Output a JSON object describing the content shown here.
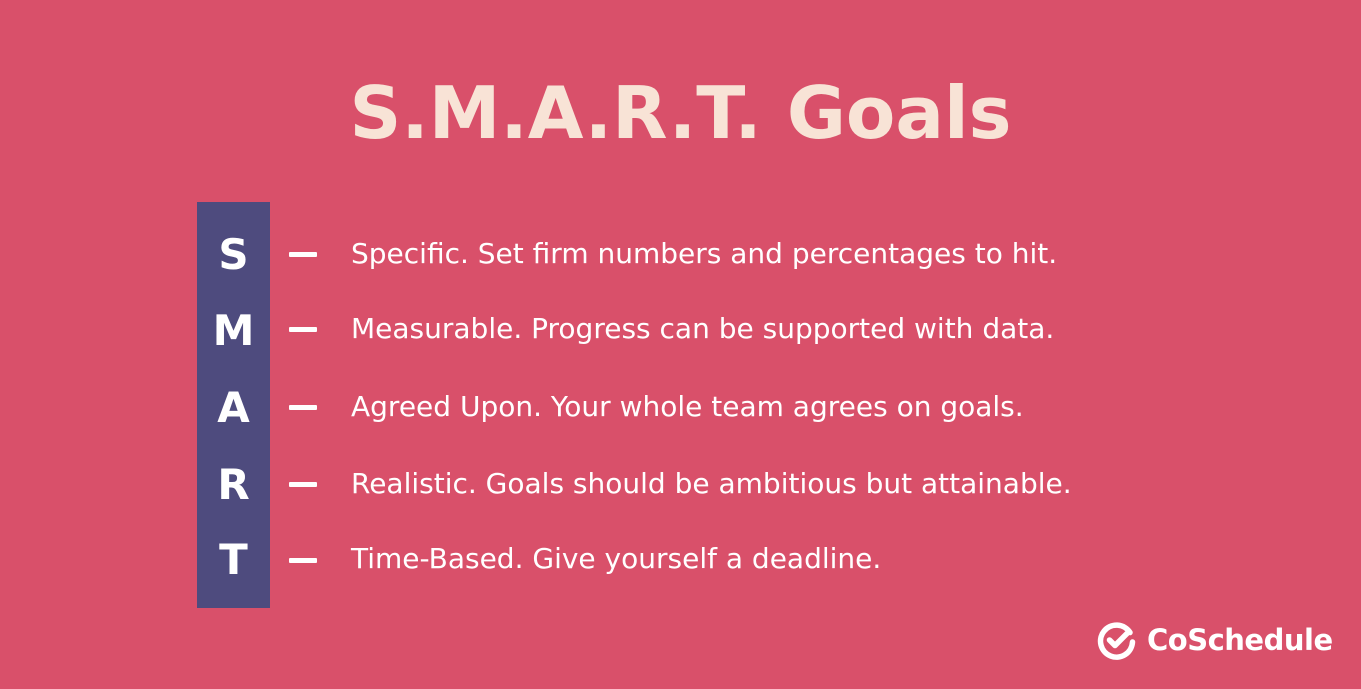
{
  "colors": {
    "background": "#D9506A",
    "title": "#F8E3D6",
    "column_fill": "#4E4B7E",
    "letter": "#FFFFFF",
    "dash": "#FFFFFF",
    "item_text": "#FFFFFF",
    "logo": "#FFFFFF"
  },
  "title": "S.M.A.R.T. Goals",
  "items": [
    {
      "letter": "S",
      "text": "Specific. Set firm numbers and percentages to hit."
    },
    {
      "letter": "M",
      "text": "Measurable. Progress can be supported with data."
    },
    {
      "letter": "A",
      "text": "Agreed Upon. Your whole team agrees on goals."
    },
    {
      "letter": "R",
      "text": "Realistic. Goals should be ambitious but attainable."
    },
    {
      "letter": "T",
      "text": "Time-Based. Give yourself a deadline."
    }
  ],
  "logo": {
    "icon": "coschedule-check-icon",
    "text": "CoSchedule"
  }
}
